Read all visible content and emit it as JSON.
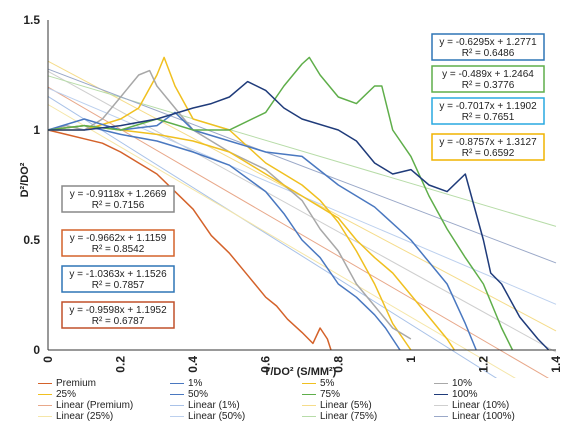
{
  "chart_data": {
    "type": "line",
    "xlabel": "T/DO² (S/MM²)",
    "ylabel": "D²/DO²",
    "xlim": [
      0,
      1.4
    ],
    "ylim": [
      0,
      1.5
    ],
    "xticks": [
      {
        "v": 0,
        "label": "0"
      },
      {
        "v": 0.2,
        "label": "0.2"
      },
      {
        "v": 0.4,
        "label": "0.4"
      },
      {
        "v": 0.6,
        "label": "0.6"
      },
      {
        "v": 0.8,
        "label": "0.8"
      },
      {
        "v": 1.0,
        "label": "1"
      },
      {
        "v": 1.2,
        "label": "1.2"
      },
      {
        "v": 1.4,
        "label": "1.4"
      }
    ],
    "yticks": [
      {
        "v": 0,
        "label": "0"
      },
      {
        "v": 0.5,
        "label": "0.5"
      },
      {
        "v": 1.0,
        "label": "1"
      },
      {
        "v": 1.5,
        "label": "1.5"
      }
    ],
    "grid": false,
    "legend_position": "bottom",
    "series": [
      {
        "name": "Premium",
        "color": "#d4622a",
        "x": [
          0,
          0.05,
          0.1,
          0.15,
          0.2,
          0.25,
          0.3,
          0.35,
          0.4,
          0.45,
          0.5,
          0.55,
          0.6,
          0.63,
          0.66,
          0.7,
          0.73,
          0.75,
          0.77,
          0.78
        ],
        "y": [
          1.0,
          0.98,
          0.96,
          0.94,
          0.9,
          0.85,
          0.8,
          0.72,
          0.64,
          0.52,
          0.44,
          0.34,
          0.24,
          0.2,
          0.14,
          0.08,
          0.03,
          0.1,
          0.05,
          0.0
        ]
      },
      {
        "name": "1%",
        "color": "#4a78c0",
        "x": [
          0,
          0.1,
          0.2,
          0.3,
          0.4,
          0.5,
          0.6,
          0.65,
          0.7,
          0.75,
          0.8,
          0.85,
          0.9,
          0.93,
          0.95,
          0.97
        ],
        "y": [
          1.0,
          1.02,
          0.98,
          0.95,
          0.9,
          0.84,
          0.72,
          0.62,
          0.5,
          0.42,
          0.3,
          0.24,
          0.16,
          0.1,
          0.05,
          0.0
        ]
      },
      {
        "name": "5%",
        "color": "#f0c020",
        "x": [
          0,
          0.1,
          0.2,
          0.25,
          0.3,
          0.32,
          0.35,
          0.4,
          0.5,
          0.6,
          0.7,
          0.75,
          0.8,
          0.85,
          0.9,
          0.95,
          1.0
        ],
        "y": [
          1.0,
          1.0,
          1.05,
          1.1,
          1.25,
          1.33,
          1.2,
          1.05,
          1.0,
          0.85,
          0.75,
          0.68,
          0.58,
          0.45,
          0.3,
          0.12,
          0.0
        ]
      },
      {
        "name": "10%",
        "color": "#a8a8a8",
        "x": [
          0,
          0.05,
          0.1,
          0.15,
          0.2,
          0.25,
          0.28,
          0.3,
          0.35,
          0.4,
          0.5,
          0.6,
          0.7,
          0.75,
          0.8,
          0.85,
          0.9,
          0.95,
          1.0
        ],
        "y": [
          1.0,
          1.02,
          1.0,
          1.05,
          1.15,
          1.25,
          1.27,
          1.2,
          1.1,
          1.0,
          0.9,
          0.82,
          0.68,
          0.55,
          0.45,
          0.3,
          0.2,
          0.1,
          0.05
        ]
      },
      {
        "name": "25%",
        "color": "#f0c020",
        "x": [
          0,
          0.1,
          0.2,
          0.3,
          0.4,
          0.5,
          0.6,
          0.7,
          0.8,
          0.85,
          0.9,
          0.95,
          1.0,
          1.05,
          1.1,
          1.12
        ],
        "y": [
          1.0,
          1.02,
          1.0,
          0.98,
          0.95,
          0.9,
          0.8,
          0.7,
          0.6,
          0.5,
          0.42,
          0.35,
          0.25,
          0.15,
          0.05,
          0.0
        ]
      },
      {
        "name": "50%",
        "color": "#4a78c0",
        "x": [
          0,
          0.1,
          0.2,
          0.3,
          0.35,
          0.4,
          0.5,
          0.6,
          0.7,
          0.8,
          0.9,
          1.0,
          1.05,
          1.1,
          1.15,
          1.18
        ],
        "y": [
          1.0,
          1.05,
          1.0,
          1.02,
          1.08,
          1.0,
          0.95,
          0.9,
          0.88,
          0.75,
          0.65,
          0.5,
          0.4,
          0.3,
          0.12,
          0.0
        ]
      },
      {
        "name": "75%",
        "color": "#5fae4a",
        "x": [
          0,
          0.1,
          0.2,
          0.3,
          0.4,
          0.5,
          0.6,
          0.65,
          0.7,
          0.72,
          0.75,
          0.8,
          0.85,
          0.9,
          0.92,
          0.95,
          1.0,
          1.05,
          1.1,
          1.15,
          1.2,
          1.25,
          1.28
        ],
        "y": [
          1.0,
          1.02,
          1.0,
          1.05,
          1.0,
          1.0,
          1.08,
          1.2,
          1.3,
          1.33,
          1.25,
          1.15,
          1.12,
          1.2,
          1.2,
          1.0,
          0.88,
          0.7,
          0.55,
          0.42,
          0.3,
          0.1,
          0.0
        ]
      },
      {
        "name": "100%",
        "color": "#1f3b7a",
        "x": [
          0,
          0.1,
          0.2,
          0.3,
          0.4,
          0.45,
          0.5,
          0.55,
          0.6,
          0.65,
          0.7,
          0.8,
          0.85,
          0.9,
          0.95,
          1.0,
          1.05,
          1.1,
          1.15,
          1.2,
          1.22,
          1.25,
          1.3,
          1.35,
          1.38
        ],
        "y": [
          1.0,
          1.0,
          1.02,
          1.05,
          1.1,
          1.12,
          1.15,
          1.22,
          1.18,
          1.1,
          1.05,
          1.0,
          0.95,
          0.85,
          0.8,
          0.82,
          0.75,
          0.72,
          0.8,
          0.5,
          0.35,
          0.3,
          0.15,
          0.05,
          0.0
        ]
      },
      {
        "name": "Linear (Premium)",
        "color": "#e8a88a",
        "trend": {
          "slope": -0.9598,
          "intercept": 1.1952
        }
      },
      {
        "name": "Linear (1%)",
        "color": "#a9c2e8",
        "trend": {
          "slope": -1.0363,
          "intercept": 1.1526
        }
      },
      {
        "name": "Linear (5%)",
        "color": "#f5dc8a",
        "trend": {
          "slope": -0.8757,
          "intercept": 1.3127
        }
      },
      {
        "name": "Linear (10%)",
        "color": "#cfcfcf",
        "trend": {
          "slope": -0.9118,
          "intercept": 1.2669
        }
      },
      {
        "name": "Linear (25%)",
        "color": "#f5e6a8",
        "trend": {
          "slope": -0.9662,
          "intercept": 1.1159
        }
      },
      {
        "name": "Linear (50%)",
        "color": "#bcd0ee",
        "trend": {
          "slope": -0.7017,
          "intercept": 1.1902
        }
      },
      {
        "name": "Linear (75%)",
        "color": "#b7dca8",
        "trend": {
          "slope": -0.489,
          "intercept": 1.2464
        }
      },
      {
        "name": "Linear (100%)",
        "color": "#9aa8c8",
        "trend": {
          "slope": -0.6295,
          "intercept": 1.2771
        }
      }
    ],
    "annotations": [
      {
        "eq": "y = -0.6295x + 1.2771",
        "r2": "R² = 0.6486",
        "border": "#2e75b6"
      },
      {
        "eq": "y = -0.489x + 1.2464",
        "r2": "R² = 0.3776",
        "border": "#5fae4a"
      },
      {
        "eq": "y = -0.7017x + 1.1902",
        "r2": "R² = 0.7651",
        "border": "#29a8e0"
      },
      {
        "eq": "y = -0.8757x + 1.3127",
        "r2": "R² = 0.6592",
        "border": "#f0b400"
      },
      {
        "eq": "y = -0.9118x + 1.2669",
        "r2": "R² = 0.7156",
        "border": "#888888"
      },
      {
        "eq": "y = -0.9662x + 1.1159",
        "r2": "R² = 0.8542",
        "border": "#d4622a"
      },
      {
        "eq": "y = -1.0363x + 1.1526",
        "r2": "R² = 0.7857",
        "border": "#2e75b6"
      },
      {
        "eq": "y = -0.9598x + 1.1952",
        "r2": "R² = 0.6787",
        "border": "#c0502a"
      }
    ]
  }
}
